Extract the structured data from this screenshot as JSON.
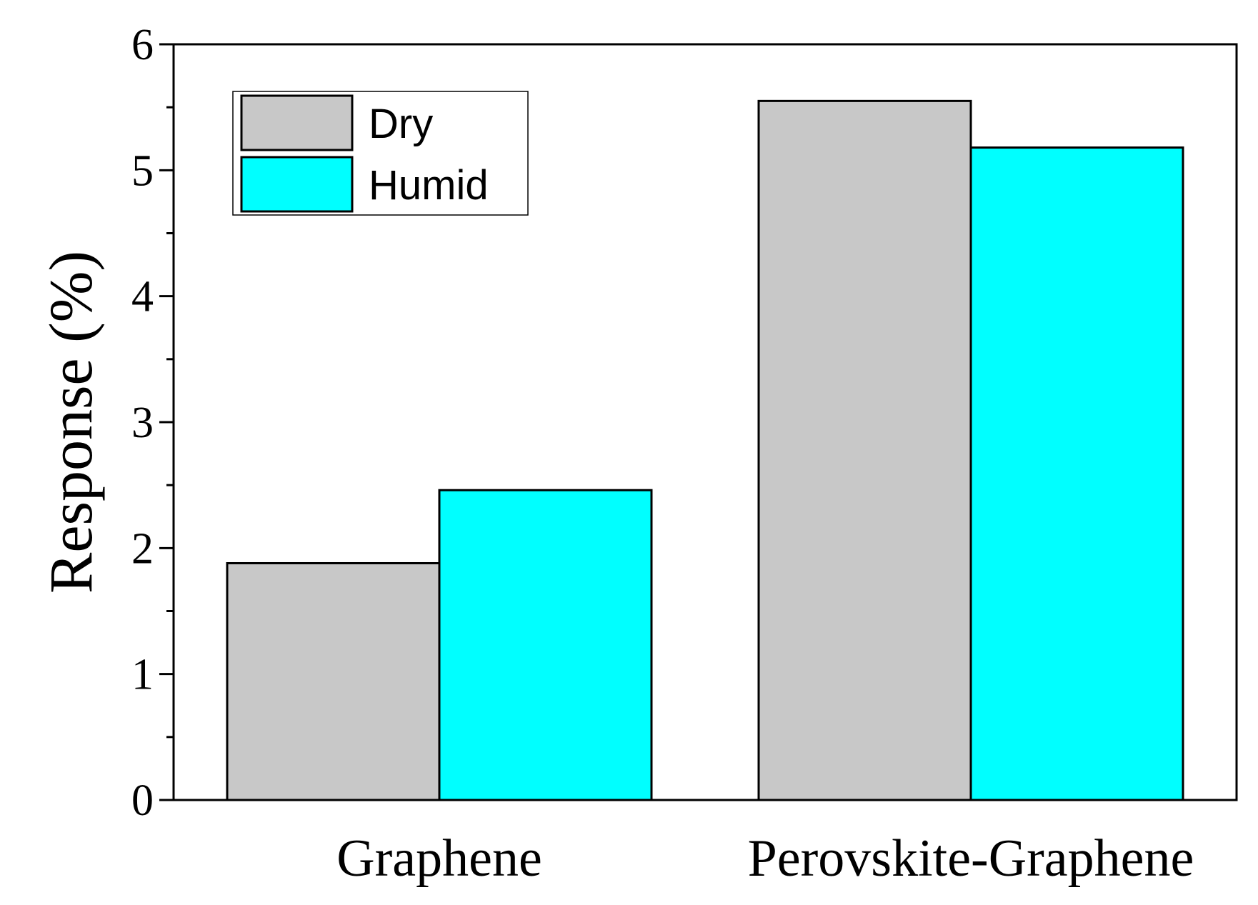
{
  "chart_data": {
    "type": "bar",
    "title": "",
    "xlabel": "",
    "ylabel": "Response (%)",
    "ylim": [
      0,
      6
    ],
    "yticks": [
      "0",
      "1",
      "2",
      "3",
      "4",
      "5",
      "6"
    ],
    "categories": [
      "Graphene",
      "Perovskite-Graphene"
    ],
    "series": [
      {
        "name": "Dry",
        "values": [
          1.88,
          5.55
        ],
        "color": "#c8c8c8"
      },
      {
        "name": "Humid",
        "values": [
          2.46,
          5.18
        ],
        "color": "#00ffff"
      }
    ],
    "grid": false,
    "legend_position": "top-left",
    "minor_ticks": true
  }
}
